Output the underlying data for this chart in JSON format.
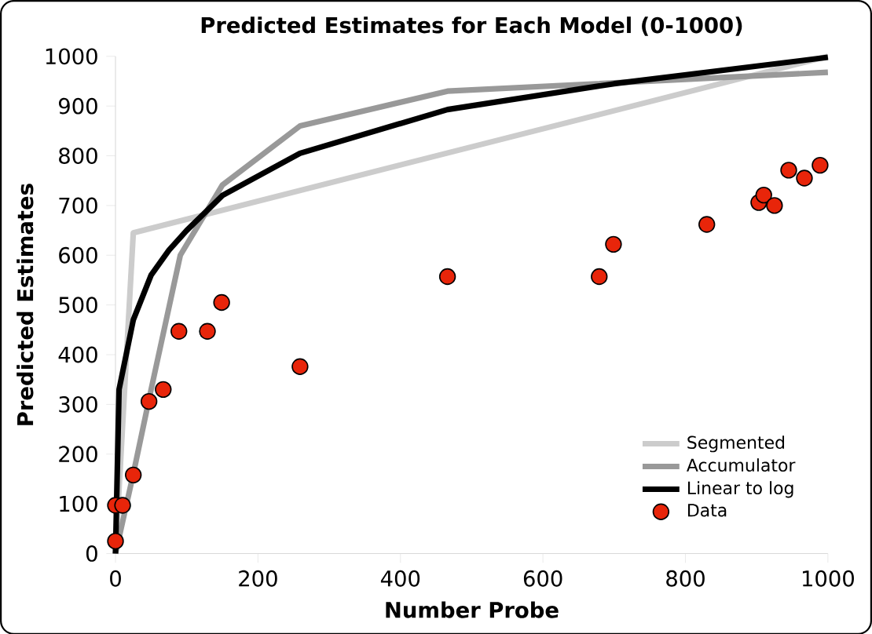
{
  "chart_data": {
    "type": "line",
    "title": "Predicted Estimates for Each Model (0-1000)",
    "xlabel": "Number Probe",
    "ylabel": "Predicted Estimates",
    "xlim": [
      0,
      1000
    ],
    "ylim": [
      0,
      1000
    ],
    "xticks": [
      0,
      200,
      400,
      600,
      800,
      1000
    ],
    "yticks": [
      0,
      100,
      200,
      300,
      400,
      500,
      600,
      700,
      800,
      900,
      1000
    ],
    "grid": false,
    "legend": "bottom right",
    "line_style": "solid",
    "marker": "none",
    "series": [
      {
        "name": "Segmented",
        "color": "#cccccc",
        "x": [
          0,
          25,
          1000
        ],
        "values": [
          0,
          645,
          1000
        ]
      },
      {
        "name": "Accumulator",
        "color": "#999999",
        "x": [
          0,
          25,
          50,
          91,
          150,
          259,
          466,
          1000
        ],
        "values": [
          0,
          160,
          330,
          600,
          741,
          860,
          930,
          968
        ]
      },
      {
        "name": "Linear to log",
        "color": "#000000",
        "x": [
          0,
          5,
          25,
          50,
          75,
          100,
          150,
          259,
          466,
          700,
          1000
        ],
        "values": [
          0,
          330,
          470,
          560,
          610,
          650,
          720,
          805,
          893,
          945,
          998
        ]
      },
      {
        "name": "Data",
        "type": "scatter",
        "marker": "circle",
        "color": "#e8250a",
        "x": [
          0,
          0,
          10,
          25,
          47,
          67,
          89,
          129,
          149,
          259,
          466,
          679,
          699,
          830,
          903,
          910,
          925,
          945,
          967,
          989
        ],
        "values": [
          25,
          97,
          97,
          158,
          306,
          330,
          447,
          447,
          505,
          376,
          557,
          557,
          622,
          662,
          706,
          721,
          700,
          771,
          755,
          781
        ]
      }
    ]
  }
}
